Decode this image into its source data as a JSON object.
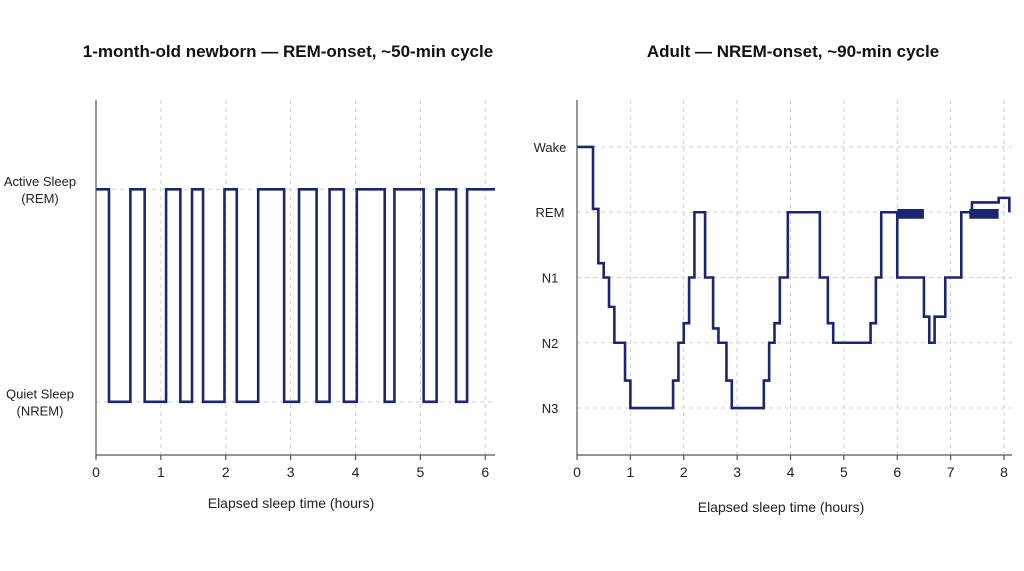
{
  "chart_data": [
    {
      "type": "line",
      "step": true,
      "title": "1-month-old newborn — REM-onset, ~50-min cycle",
      "xlabel": "Elapsed sleep time (hours)",
      "ylabel": "",
      "xlim": [
        0,
        6.15
      ],
      "xticks": [
        0,
        1,
        2,
        3,
        4,
        5,
        6
      ],
      "y_categories": [
        {
          "label_lines": [
            "Quiet Sleep",
            "(NREM)"
          ],
          "value": 0
        },
        {
          "label_lines": [
            "Active Sleep",
            "(REM)"
          ],
          "value": 1
        }
      ],
      "ylim": [
        -0.25,
        1.42
      ],
      "grid": true,
      "series": [
        {
          "color": "#1b2670",
          "x": [
            0,
            0.2,
            0.53,
            0.75,
            1.08,
            1.3,
            1.48,
            1.65,
            1.98,
            2.17,
            2.5,
            2.9,
            3.13,
            3.4,
            3.6,
            3.82,
            4.02,
            4.45,
            4.6,
            5.05,
            5.25,
            5.55,
            5.72,
            6.15
          ],
          "y": [
            1,
            0,
            1,
            0,
            1,
            0,
            1,
            0,
            1,
            0,
            1,
            0,
            1,
            0,
            1,
            0,
            1,
            0,
            1,
            0,
            1,
            0,
            1,
            1
          ]
        }
      ]
    },
    {
      "type": "line",
      "step": true,
      "title": "Adult — NREM-onset, ~90-min cycle",
      "xlabel": "Elapsed sleep time (hours)",
      "ylabel": "",
      "xlim": [
        0,
        8.15
      ],
      "xticks": [
        0,
        1,
        2,
        3,
        4,
        5,
        6,
        7,
        8
      ],
      "y_categories": [
        {
          "label_lines": [
            "N3"
          ],
          "value": 0
        },
        {
          "label_lines": [
            "N2"
          ],
          "value": 1
        },
        {
          "label_lines": [
            "N1"
          ],
          "value": 2
        },
        {
          "label_lines": [
            "REM"
          ],
          "value": 3
        },
        {
          "label_lines": [
            "Wake"
          ],
          "value": 4
        }
      ],
      "ylim": [
        -0.72,
        4.72
      ],
      "grid": true,
      "series": [
        {
          "color": "#1b2670",
          "x": [
            0,
            0.3,
            0.4,
            0.5,
            0.6,
            0.7,
            0.9,
            1.0,
            1.1,
            1.8,
            1.9,
            2.0,
            2.1,
            2.2,
            2.4,
            2.55,
            2.65,
            2.8,
            2.9,
            3.0,
            3.5,
            3.6,
            3.7,
            3.8,
            3.95,
            4.1,
            4.55,
            4.7,
            4.8,
            5.5,
            5.6,
            5.7,
            6.0,
            6.5,
            6.6,
            6.7,
            6.9,
            7.0,
            7.2,
            7.4,
            7.9,
            8.0,
            8.1
          ],
          "y": [
            4,
            3.05,
            2.22,
            2.0,
            1.55,
            1.0,
            0.42,
            0.0,
            0.0,
            0.42,
            1.0,
            1.3,
            2.0,
            3.0,
            2.0,
            1.22,
            1.0,
            0.42,
            0.0,
            0.0,
            0.42,
            1.0,
            1.3,
            2.0,
            3.0,
            3.0,
            2.0,
            1.3,
            1.0,
            1.3,
            2.0,
            3.0,
            2.0,
            1.4,
            1.0,
            1.4,
            2.0,
            2.0,
            3.0,
            3.15,
            3.22,
            3.22,
            3.0
          ]
        }
      ],
      "bands": [
        {
          "x0": 6.0,
          "x1": 6.5,
          "y0": 2.9,
          "y1": 3.05,
          "color": "#1b2670"
        },
        {
          "x0": 7.35,
          "x1": 7.9,
          "y0": 2.9,
          "y1": 3.05,
          "color": "#1b2670"
        }
      ]
    }
  ]
}
